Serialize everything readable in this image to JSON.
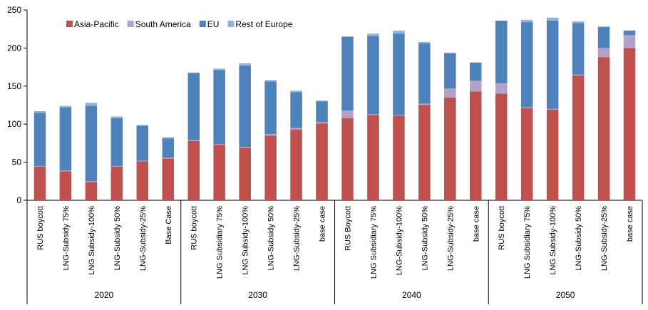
{
  "chart_data": {
    "type": "bar",
    "stacked": true,
    "ylim": [
      0,
      250
    ],
    "yticks": [
      0,
      50,
      100,
      150,
      200,
      250
    ],
    "legend_position": "top-left",
    "grid": false,
    "groups": [
      {
        "label": "2020",
        "categories": [
          "RUS boycott",
          "LNG-Subsidy 75%",
          "LNG Subsidy-100%",
          "LNG-Subsidy 50%",
          "LNG-Subsidy-25%",
          "Base Case"
        ]
      },
      {
        "label": "2030",
        "categories": [
          "RUS boycott",
          "LNG Subsidiary 75%",
          "LNG Subsidy-100%",
          "LNG-Subsidy 50%",
          "LNG-Subsidy-25%",
          "base case"
        ]
      },
      {
        "label": "2040",
        "categories": [
          "RUS Boycott",
          "LNG Subsidiary 75%",
          "LNG-Subsidy-100%",
          "LNG-Subsidy 50%",
          "LNG-Subsidy-25%",
          "base case"
        ]
      },
      {
        "label": "2050",
        "categories": [
          "RUS boycott",
          "LNG Subsidiary 75%",
          "LNG Subsidy-100%",
          "LNG-Subsidy 50%",
          "LNG-Subsidy-25%",
          "base case"
        ]
      }
    ],
    "series": [
      {
        "name": "Asia-Pacific",
        "color": "#c0504d",
        "values": [
          44,
          38,
          24,
          44,
          51,
          55,
          78,
          73,
          69,
          85,
          93,
          101,
          108,
          112,
          111,
          125,
          135,
          143,
          140,
          121,
          119,
          164,
          188,
          200
        ]
      },
      {
        "name": "South America",
        "color": "#b3a2c7",
        "values": [
          1,
          1,
          1,
          1,
          1,
          1,
          1,
          1,
          1,
          2,
          2,
          2,
          10,
          1,
          1,
          2,
          12,
          14,
          14,
          1,
          1,
          1,
          12,
          17
        ]
      },
      {
        "name": "EU",
        "color": "#4f81bd",
        "values": [
          70,
          83,
          99,
          63,
          46,
          25,
          88,
          97,
          107,
          69,
          47,
          27,
          97,
          103,
          107,
          79,
          46,
          24,
          82,
          112,
          116,
          68,
          28,
          6
        ]
      },
      {
        "name": "Rest of Europe",
        "color": "#95b3d7",
        "values": [
          2,
          2,
          4,
          2,
          1,
          2,
          1,
          2,
          3,
          2,
          2,
          1,
          0,
          3,
          4,
          2,
          1,
          0,
          0,
          3,
          4,
          2,
          0,
          0
        ]
      }
    ]
  }
}
